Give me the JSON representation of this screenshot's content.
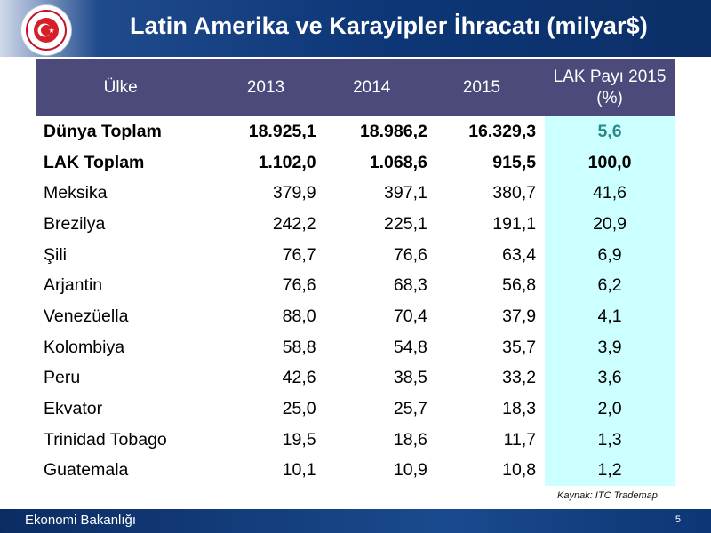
{
  "header": {
    "title": "Latin Amerika ve Karayipler İhracatı (milyar$)"
  },
  "table": {
    "columns": [
      "Ülke",
      "2013",
      "2014",
      "2015",
      "LAK Payı 2015 (%)"
    ],
    "rows": [
      {
        "country": "Dünya Toplam",
        "y2013": "18.925,1",
        "y2014": "18.986,2",
        "y2015": "16.329,3",
        "share": "5,6"
      },
      {
        "country": "LAK Toplam",
        "y2013": "1.102,0",
        "y2014": "1.068,6",
        "y2015": "915,5",
        "share": "100,0"
      },
      {
        "country": "Meksika",
        "y2013": "379,9",
        "y2014": "397,1",
        "y2015": "380,7",
        "share": "41,6"
      },
      {
        "country": "Brezilya",
        "y2013": "242,2",
        "y2014": "225,1",
        "y2015": "191,1",
        "share": "20,9"
      },
      {
        "country": "Şili",
        "y2013": "76,7",
        "y2014": "76,6",
        "y2015": "63,4",
        "share": "6,9"
      },
      {
        "country": "Arjantin",
        "y2013": "76,6",
        "y2014": "68,3",
        "y2015": "56,8",
        "share": "6,2"
      },
      {
        "country": "Venezüella",
        "y2013": "88,0",
        "y2014": "70,4",
        "y2015": "37,9",
        "share": "4,1"
      },
      {
        "country": "Kolombiya",
        "y2013": "58,8",
        "y2014": "54,8",
        "y2015": "35,7",
        "share": "3,9"
      },
      {
        "country": "Peru",
        "y2013": "42,6",
        "y2014": "38,5",
        "y2015": "33,2",
        "share": "3,6"
      },
      {
        "country": "Ekvator",
        "y2013": "25,0",
        "y2014": "25,7",
        "y2015": "18,3",
        "share": "2,0"
      },
      {
        "country": "Trinidad Tobago",
        "y2013": "19,5",
        "y2014": "18,6",
        "y2015": "11,7",
        "share": "1,3"
      },
      {
        "country": "Guatemala",
        "y2013": "10,1",
        "y2014": "10,9",
        "y2015": "10,8",
        "share": "1,2"
      }
    ]
  },
  "source": "Kaynak: ITC Trademap",
  "footer": {
    "ministry": "Ekonomi Bakanlığı",
    "page_number": "5"
  },
  "colors": {
    "header_bg": "#4b4a7b",
    "share_column_bg": "#ccffff",
    "banner_blue": "#0d3777",
    "highlight_teal": "#2a8a8a"
  }
}
